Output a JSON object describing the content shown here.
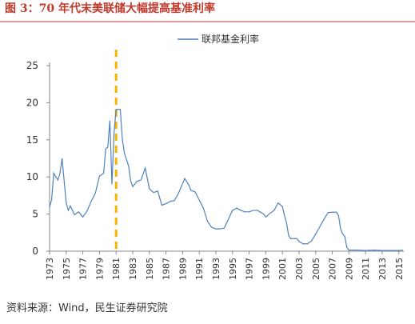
{
  "chart_data": {
    "type": "line",
    "title": "图 3：70 年代末美联储大幅提高基准利率",
    "source": "资料来源：Wind，民生证券研究院",
    "x": [
      1973.0,
      1973.25,
      1973.5,
      1973.75,
      1974.0,
      1974.25,
      1974.5,
      1974.75,
      1975.0,
      1975.25,
      1975.5,
      1975.75,
      1976.0,
      1976.5,
      1977.0,
      1977.5,
      1978.0,
      1978.5,
      1979.0,
      1979.5,
      1979.75,
      1980.0,
      1980.25,
      1980.5,
      1980.75,
      1981.0,
      1981.5,
      1981.75,
      1982.0,
      1982.5,
      1982.75,
      1983.0,
      1983.5,
      1984.0,
      1984.5,
      1985.0,
      1985.5,
      1986.0,
      1986.5,
      1987.0,
      1987.5,
      1988.0,
      1988.5,
      1989.0,
      1989.25,
      1989.75,
      1990.0,
      1990.5,
      1991.0,
      1991.5,
      1992.0,
      1992.5,
      1993.0,
      1993.5,
      1994.0,
      1994.5,
      1995.0,
      1995.5,
      1996.0,
      1996.5,
      1997.0,
      1997.5,
      1998.0,
      1998.75,
      1999.0,
      1999.5,
      2000.0,
      2000.5,
      2001.0,
      2001.25,
      2001.5,
      2001.75,
      2002.0,
      2002.75,
      2003.0,
      2003.5,
      2004.0,
      2004.5,
      2005.0,
      2005.5,
      2006.0,
      2006.5,
      2007.0,
      2007.5,
      2007.75,
      2008.0,
      2008.25,
      2008.5,
      2008.75,
      2009.0,
      2010.0,
      2011.0,
      2012.0,
      2013.0,
      2014.0,
      2015.0,
      2015.5
    ],
    "series": [
      {
        "name": "联邦基金利率",
        "color": "#4f81bd",
        "values": [
          5.9,
          7.0,
          10.5,
          10.0,
          9.6,
          10.5,
          12.5,
          9.5,
          6.5,
          5.5,
          6.1,
          5.5,
          4.9,
          5.3,
          4.6,
          5.4,
          6.7,
          7.8,
          10.1,
          10.5,
          13.8,
          14.0,
          17.6,
          9.0,
          15.9,
          19.1,
          19.1,
          15.1,
          13.2,
          11.5,
          9.5,
          8.7,
          9.4,
          9.6,
          11.2,
          8.4,
          7.9,
          8.1,
          6.2,
          6.4,
          6.7,
          6.8,
          7.8,
          9.1,
          9.8,
          8.9,
          8.2,
          8.0,
          6.9,
          5.8,
          4.0,
          3.2,
          3.0,
          3.0,
          3.1,
          4.3,
          5.5,
          5.8,
          5.5,
          5.3,
          5.3,
          5.5,
          5.5,
          5.0,
          4.6,
          5.1,
          5.5,
          6.5,
          6.0,
          4.8,
          3.8,
          2.1,
          1.7,
          1.7,
          1.3,
          1.0,
          1.0,
          1.4,
          2.3,
          3.3,
          4.3,
          5.2,
          5.25,
          5.25,
          4.8,
          3.0,
          2.3,
          2.0,
          0.5,
          0.15,
          0.15,
          0.1,
          0.15,
          0.1,
          0.1,
          0.1,
          0.14
        ]
      }
    ],
    "vline": {
      "value": 1981,
      "color": "#f4b400"
    },
    "xlim": [
      1973,
      2015.6
    ],
    "xticks": [
      1973,
      1975,
      1977,
      1979,
      1981,
      1983,
      1985,
      1987,
      1989,
      1991,
      1993,
      1995,
      1997,
      1999,
      2001,
      2003,
      2005,
      2007,
      2009,
      2011,
      2013,
      2015
    ],
    "ylim": [
      0,
      25
    ],
    "yticks": [
      0,
      5,
      10,
      15,
      20,
      25
    ],
    "legend": "top"
  }
}
